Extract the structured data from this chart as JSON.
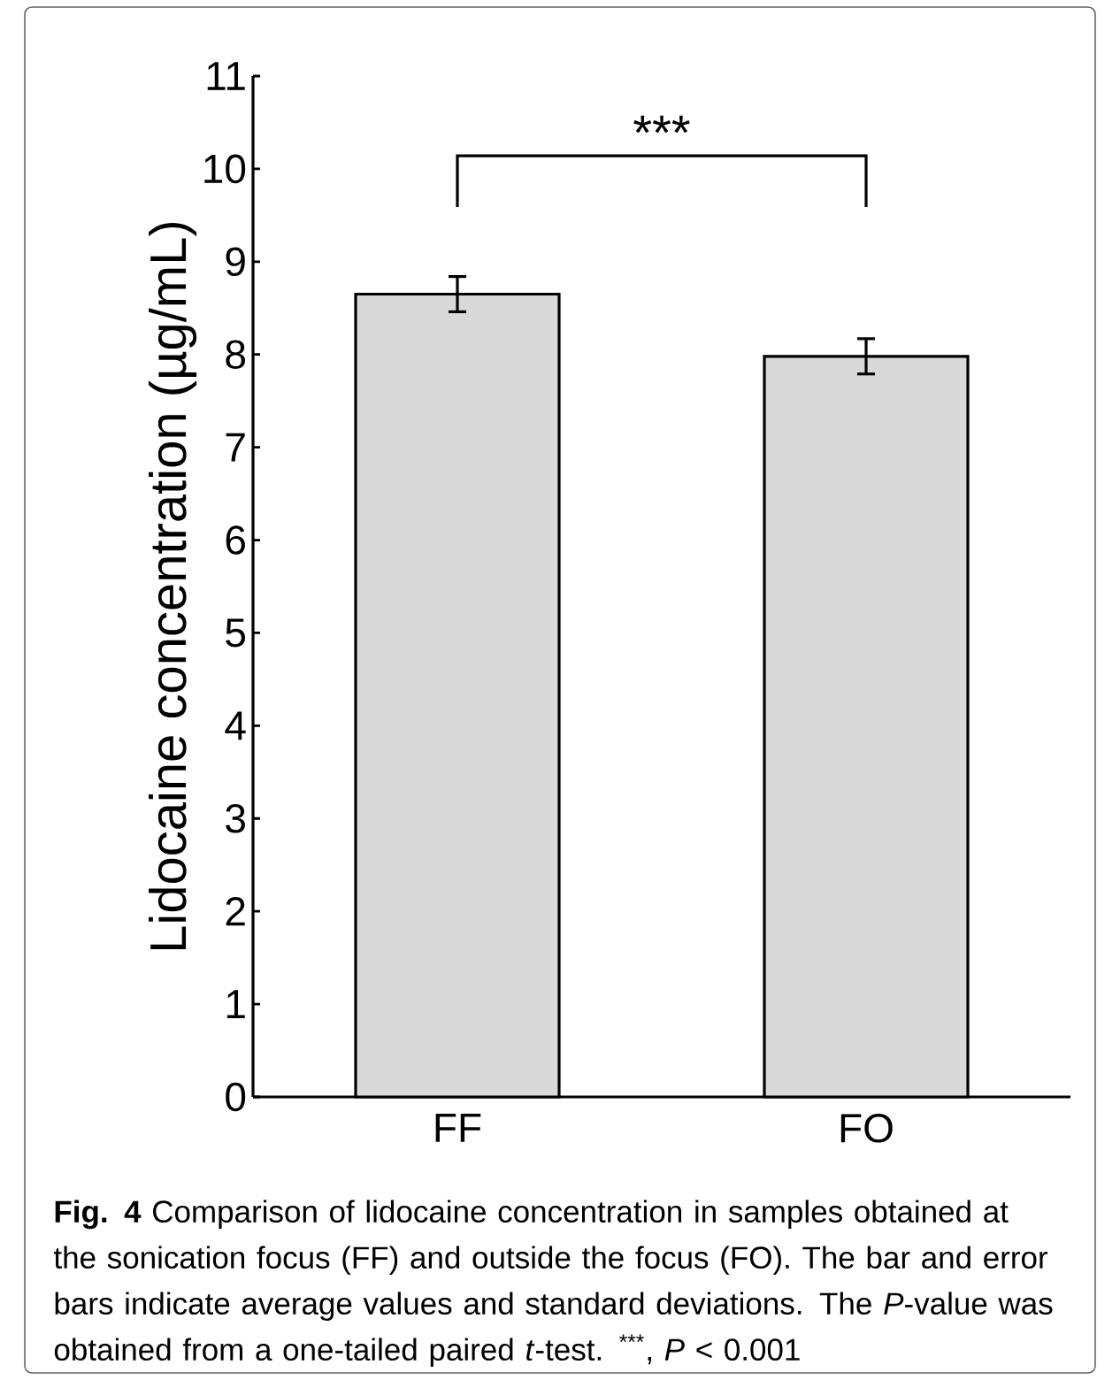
{
  "chart_data": {
    "type": "bar",
    "ylabel": "Lidocaine concentration (µg/mL)",
    "categories": [
      "FF",
      "FO"
    ],
    "values": [
      8.65,
      7.98
    ],
    "errors": [
      0.19,
      0.19
    ],
    "color": "#d9d9d9",
    "ylim": [
      0,
      11
    ],
    "yticks": [
      0,
      1,
      2,
      3,
      4,
      5,
      6,
      7,
      8,
      9,
      10,
      11
    ],
    "annotations": [
      "***",
      "**Fig. 4** Comparison of lidocaine concentration in samples obtained at the sonication focus (FF) and outside the focus (FO). The bar and error bars indicate average values and standard deviations. The *P*-value was obtained from a one-tailed paired *t*-test. $^{***}$, *P* < 0.001"
    ]
  }
}
